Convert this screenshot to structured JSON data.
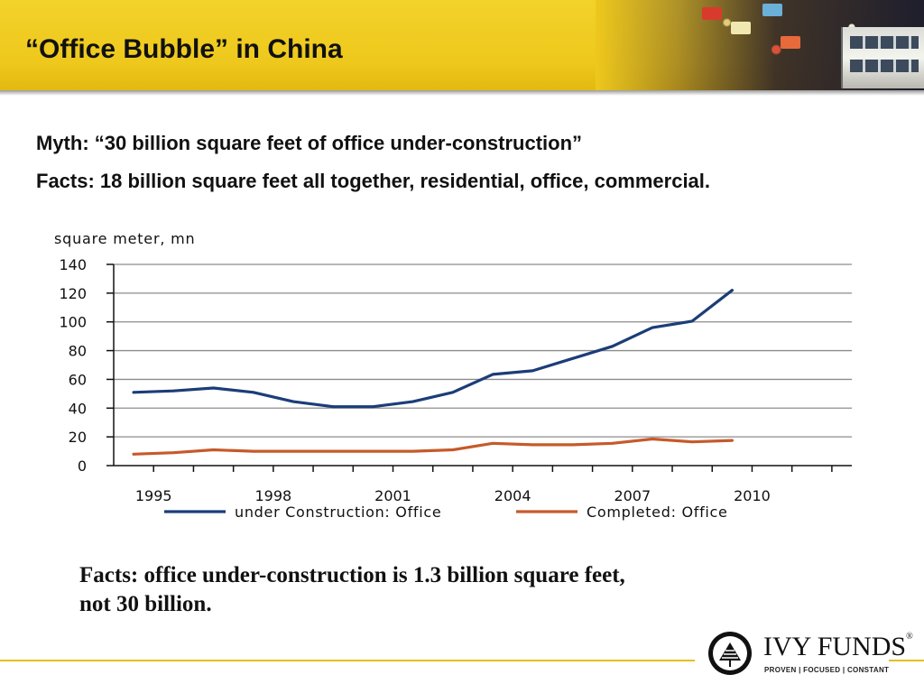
{
  "slide": {
    "title": "“Office Bubble” in China",
    "myth": "Myth: “30 billion square feet of office under-construction”",
    "facts": "Facts: 18 billion square feet all together, residential, office, commercial.",
    "conclusion_line1": "Facts: office under-construction is 1.3 billion square feet,",
    "conclusion_line2": "not 30 billion."
  },
  "logo": {
    "name": "IVY FUNDS",
    "registered": "®",
    "tagline": "PROVEN | FOCUSED | CONSTANT"
  },
  "colors": {
    "header_yellow": "#eec81c",
    "series_construction": "#1b3d78",
    "series_completed": "#c65a2a",
    "gridline": "#8c8c8c"
  },
  "chart_data": {
    "type": "line",
    "ylabel": "square meter, mn",
    "ylim": [
      0,
      140
    ],
    "yticks": [
      0,
      20,
      40,
      60,
      80,
      100,
      120,
      140
    ],
    "xlim": [
      1994,
      2012.5
    ],
    "xticks": [
      1995,
      1998,
      2001,
      2004,
      2007,
      2010
    ],
    "x": [
      1994.5,
      1995.5,
      1996.5,
      1997.5,
      1998.5,
      1999.5,
      2000.5,
      2001.5,
      2002.5,
      2003.5,
      2004.5,
      2005.5,
      2006.5,
      2007.5,
      2008.5,
      2009.5
    ],
    "grid": true,
    "legend_position": "bottom",
    "series": [
      {
        "name": "under Construction: Office",
        "color": "#1b3d78",
        "values": [
          51,
          52,
          54,
          51,
          44.5,
          41,
          41,
          44.5,
          51,
          63.5,
          66,
          74.5,
          83,
          96,
          100.5,
          122
        ]
      },
      {
        "name": "Completed: Office",
        "color": "#c65a2a",
        "values": [
          8,
          9,
          11,
          10,
          10,
          10,
          10,
          10,
          11,
          15.5,
          14.5,
          14.5,
          15.5,
          18.5,
          16.5,
          17.5
        ]
      }
    ]
  }
}
